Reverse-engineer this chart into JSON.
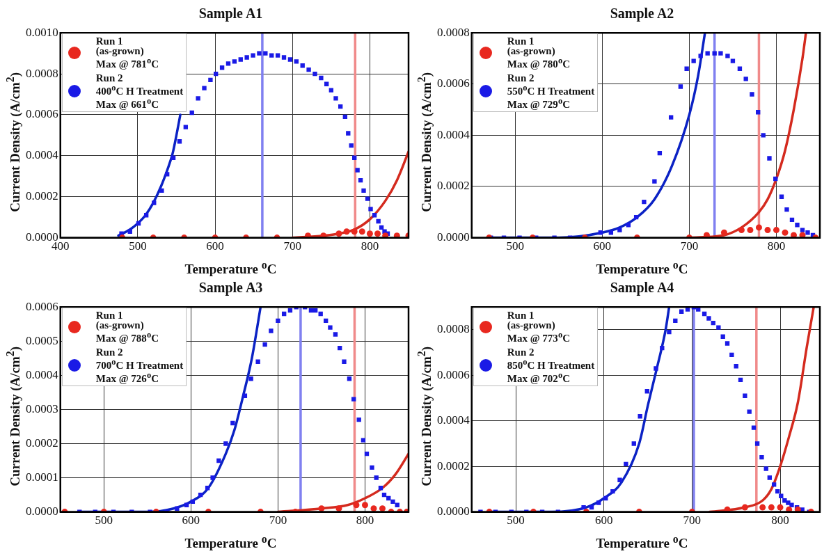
{
  "chart_data": [
    {
      "type": "scatter",
      "title": "Sample A1",
      "xlabel": "Temperature $^{o}$C",
      "ylabel": "Current Density (A/cm$^{2}$)",
      "xlim": [
        400,
        850
      ],
      "xticks": [
        400,
        500,
        600,
        700,
        800
      ],
      "ylim": [
        0,
        0.001
      ],
      "yticks": [
        {
          "value": 0,
          "label": "0.0000"
        },
        {
          "value": 0.0002,
          "label": "0.0002"
        },
        {
          "value": 0.0004,
          "label": "0.0004"
        },
        {
          "value": 0.0006,
          "label": "0.0006"
        },
        {
          "value": 0.0008,
          "label": "0.0008"
        },
        {
          "value": 0.001,
          "label": "0.0010"
        }
      ],
      "grid": true,
      "legend": "top left",
      "series": [
        {
          "name": "Run 1\n(as-grown)\nMax @ 781$^{o}$C",
          "marker": "circle",
          "color": "#e8281f",
          "x": [
            480,
            520,
            560,
            600,
            640,
            680,
            720,
            740,
            760,
            770,
            780,
            790,
            800,
            810,
            820,
            835,
            850
          ],
          "values": [
            0,
            0,
            0,
            0,
            0,
            0,
            1e-05,
            1e-05,
            2e-05,
            3e-05,
            3e-05,
            3e-05,
            2e-05,
            2e-05,
            1e-05,
            1e-05,
            1e-05
          ]
        },
        {
          "name": "Run 2\n400$^{o}$C H Treatment\nMax @ 661$^{o}$C",
          "marker": "square",
          "color": "#1a1ae6",
          "x": [
            479,
            490,
            501,
            511,
            521,
            531,
            538,
            546,
            554,
            562,
            570,
            578,
            586,
            594,
            601,
            609,
            617,
            625,
            633,
            641,
            649,
            657,
            665,
            673,
            681,
            689,
            697,
            705,
            713,
            721,
            729,
            737,
            744,
            750,
            756,
            762,
            768,
            772,
            776,
            780,
            784,
            788,
            792,
            797,
            801,
            806,
            811,
            815,
            819,
            823
          ],
          "values": [
            2e-05,
            3e-05,
            7e-05,
            0.00011,
            0.00017,
            0.00023,
            0.00031,
            0.00039,
            0.00047,
            0.00054,
            0.00061,
            0.00068,
            0.00073,
            0.00077,
            0.0008,
            0.00083,
            0.00085,
            0.00086,
            0.00087,
            0.00088,
            0.00089,
            0.0009,
            0.0009,
            0.00089,
            0.00089,
            0.00088,
            0.00087,
            0.00086,
            0.00084,
            0.00082,
            0.0008,
            0.00078,
            0.00075,
            0.00072,
            0.00068,
            0.00064,
            0.00059,
            0.00051,
            0.00045,
            0.00039,
            0.00033,
            0.00028,
            0.00023,
            0.00019,
            0.00014,
            0.00011,
            8e-05,
            5e-05,
            3e-05,
            2e-05
          ]
        },
        {
          "type": "line",
          "marker": "none",
          "color": "#0b22c4",
          "x": [
            475,
            490,
            500,
            510,
            520,
            530,
            540,
            545,
            550,
            555
          ],
          "values": [
            1e-05,
            4e-05,
            7e-05,
            0.00011,
            0.00017,
            0.00025,
            0.00035,
            0.00041,
            0.0005,
            0.0006
          ]
        },
        {
          "type": "line",
          "marker": "none",
          "color": "#d42a1e",
          "x": [
            700,
            740,
            760,
            780,
            800,
            820,
            835,
            850
          ],
          "values": [
            0,
            1e-05,
            2e-05,
            4e-05,
            9e-05,
            0.00018,
            0.00028,
            0.00042
          ]
        }
      ],
      "ref_lines": [
        {
          "axis": "x",
          "value": 661,
          "color": "#8080f0"
        },
        {
          "axis": "x",
          "value": 781,
          "color": "#f08a8a"
        }
      ]
    },
    {
      "type": "scatter",
      "title": "Sample A2",
      "xlabel": "Temperature $^{o}$C",
      "ylabel": "Current Density (A/cm$^{2}$)",
      "xlim": [
        450,
        850
      ],
      "xticks": [
        500,
        600,
        700,
        800
      ],
      "ylim": [
        0,
        0.0008
      ],
      "yticks": [
        {
          "value": 0,
          "label": "0.0000"
        },
        {
          "value": 0.0002,
          "label": "0.0002"
        },
        {
          "value": 0.0004,
          "label": "0.0004"
        },
        {
          "value": 0.0006,
          "label": "0.0006"
        },
        {
          "value": 0.0008,
          "label": "0.0008"
        }
      ],
      "grid": true,
      "legend": "top left",
      "series": [
        {
          "name": "Run 1\n(as-grown)\nMax @ 780$^{o}$C",
          "marker": "circle",
          "color": "#e8281f",
          "x": [
            470,
            520,
            580,
            640,
            700,
            720,
            740,
            760,
            770,
            780,
            790,
            800,
            810,
            820,
            830,
            845
          ],
          "values": [
            0,
            0,
            0,
            0,
            0,
            1e-05,
            2e-05,
            3e-05,
            3e-05,
            4e-05,
            3e-05,
            3e-05,
            2e-05,
            1e-05,
            1e-05,
            0
          ]
        },
        {
          "name": "Run 2\n550$^{o}$C H Treatment\nMax @ 729$^{o}$C",
          "marker": "square",
          "color": "#1a1ae6",
          "x": [
            472,
            487,
            505,
            524,
            545,
            563,
            598,
            610,
            620,
            630,
            639,
            648,
            660,
            666,
            679,
            690,
            697,
            705,
            713,
            721,
            729,
            736,
            744,
            750,
            758,
            765,
            772,
            779,
            785,
            792,
            799,
            806,
            812,
            818,
            824,
            830,
            836,
            842
          ],
          "values": [
            0,
            0,
            0,
            0,
            0,
            0,
            2e-05,
            2e-05,
            3e-05,
            5e-05,
            8e-05,
            0.00014,
            0.00022,
            0.00033,
            0.00047,
            0.00059,
            0.00066,
            0.00069,
            0.00071,
            0.00072,
            0.00072,
            0.00072,
            0.00071,
            0.00069,
            0.00066,
            0.00062,
            0.00056,
            0.00049,
            0.0004,
            0.00031,
            0.00023,
            0.00016,
            0.00011,
            7e-05,
            5e-05,
            3e-05,
            2e-05,
            1e-05
          ]
        },
        {
          "type": "line",
          "marker": "none",
          "color": "#0b22c4",
          "x": [
            470,
            550,
            600,
            620,
            640,
            660,
            680,
            700,
            710,
            718
          ],
          "values": [
            0,
            0,
            2e-05,
            4e-05,
            8e-05,
            0.00015,
            0.00028,
            0.00048,
            0.00063,
            0.0008
          ]
        },
        {
          "type": "line",
          "marker": "none",
          "color": "#d42a1e",
          "x": [
            700,
            740,
            760,
            780,
            790,
            800,
            810,
            820,
            830,
            834
          ],
          "values": [
            0,
            1e-05,
            4e-05,
            0.0001,
            0.00015,
            0.00023,
            0.00034,
            0.0005,
            0.0007,
            0.0008
          ]
        }
      ],
      "ref_lines": [
        {
          "axis": "x",
          "value": 729,
          "color": "#8080f0"
        },
        {
          "axis": "x",
          "value": 780,
          "color": "#f08a8a"
        }
      ]
    },
    {
      "type": "scatter",
      "title": "Sample A3",
      "xlabel": "Temperature $^{o}$C",
      "ylabel": "Current Density (A/cm$^{2}$)",
      "xlim": [
        450,
        850
      ],
      "xticks": [
        500,
        600,
        700,
        800
      ],
      "ylim": [
        0,
        0.0006
      ],
      "yticks": [
        {
          "value": 0,
          "label": "0.0000"
        },
        {
          "value": 0.0001,
          "label": "0.0001"
        },
        {
          "value": 0.0002,
          "label": "0.0002"
        },
        {
          "value": 0.0003,
          "label": "0.0003"
        },
        {
          "value": 0.0004,
          "label": "0.0004"
        },
        {
          "value": 0.0005,
          "label": "0.0005"
        },
        {
          "value": 0.0006,
          "label": "0.0006"
        }
      ],
      "grid": true,
      "legend": "top left",
      "series": [
        {
          "name": "Run 1\n(as-grown)\nMax @ 788$^{o}$C",
          "marker": "circle",
          "color": "#e8281f",
          "x": [
            455,
            500,
            560,
            620,
            680,
            720,
            750,
            770,
            790,
            800,
            810,
            820,
            830,
            840,
            848
          ],
          "values": [
            0,
            0,
            0,
            0,
            0,
            0,
            1e-05,
            1e-05,
            2e-05,
            2e-05,
            1e-05,
            1e-05,
            0,
            0,
            0
          ]
        },
        {
          "name": "Run 2\n700$^{o}$C H Treatment\nMax @ 726$^{o}$C",
          "marker": "square",
          "color": "#1a1ae6",
          "x": [
            472,
            490,
            511,
            532,
            553,
            572,
            584,
            595,
            602,
            611,
            619,
            625,
            632,
            640,
            648,
            662,
            669,
            677,
            685,
            692,
            700,
            707,
            714,
            721,
            731,
            738,
            743,
            749,
            755,
            760,
            766,
            771,
            776,
            782,
            787,
            793,
            798,
            802,
            808,
            813,
            818,
            822,
            827,
            832,
            837
          ],
          "values": [
            0,
            0,
            0,
            0,
            0,
            0,
            1e-05,
            2e-05,
            3e-05,
            5e-05,
            7e-05,
            0.0001,
            0.00015,
            0.0002,
            0.00026,
            0.00034,
            0.00039,
            0.00044,
            0.00049,
            0.00053,
            0.00056,
            0.00058,
            0.00059,
            0.0006,
            0.0006,
            0.00059,
            0.00059,
            0.00058,
            0.00056,
            0.00054,
            0.00052,
            0.00048,
            0.00044,
            0.00039,
            0.00033,
            0.00027,
            0.00021,
            0.00017,
            0.00013,
            0.0001,
            7e-05,
            5e-05,
            4e-05,
            3e-05,
            2e-05
          ]
        },
        {
          "type": "line",
          "marker": "none",
          "color": "#0b22c4",
          "x": [
            470,
            550,
            580,
            600,
            620,
            640,
            650,
            660,
            670,
            680
          ],
          "values": [
            0,
            0,
            1e-05,
            3e-05,
            7e-05,
            0.00017,
            0.00024,
            0.00034,
            0.00045,
            0.0006
          ]
        },
        {
          "type": "line",
          "marker": "none",
          "color": "#d42a1e",
          "x": [
            700,
            750,
            780,
            800,
            820,
            835,
            850
          ],
          "values": [
            0,
            1e-05,
            2e-05,
            4e-05,
            7e-05,
            0.00011,
            0.00017
          ]
        }
      ],
      "ref_lines": [
        {
          "axis": "x",
          "value": 726,
          "color": "#8080f0"
        },
        {
          "axis": "x",
          "value": 788,
          "color": "#f08a8a"
        }
      ]
    },
    {
      "type": "scatter",
      "title": "Sample A4",
      "xlabel": "Temperature $^{o}$C",
      "ylabel": "Current Density (A/cm$^{2}$)",
      "xlim": [
        450,
        845
      ],
      "xticks": [
        500,
        600,
        700,
        800
      ],
      "ylim": [
        0,
        0.0009
      ],
      "yticks": [
        {
          "value": 0,
          "label": "0.0000"
        },
        {
          "value": 0.0002,
          "label": "0.0002"
        },
        {
          "value": 0.0004,
          "label": "0.0004"
        },
        {
          "value": 0.0006,
          "label": "0.0006"
        },
        {
          "value": 0.0008,
          "label": "0.0008"
        }
      ],
      "grid": true,
      "legend": "top left",
      "series": [
        {
          "name": "Run 1\n(as-grown)\nMax @ 773$^{o}$C",
          "marker": "circle",
          "color": "#e8281f",
          "x": [
            470,
            520,
            580,
            640,
            700,
            740,
            760,
            780,
            790,
            800,
            810,
            820,
            835
          ],
          "values": [
            0,
            0,
            0,
            0,
            0,
            1e-05,
            2e-05,
            2e-05,
            2e-05,
            2e-05,
            1e-05,
            1e-05,
            0
          ]
        },
        {
          "name": "Run 2\n850$^{o}$C H Treatment\nMax @ 702$^{o}$C",
          "marker": "square",
          "color": "#1a1ae6",
          "x": [
            460,
            477,
            495,
            512,
            530,
            548,
            565,
            577,
            586,
            594,
            602,
            610,
            618,
            625,
            634,
            641,
            649,
            659,
            666,
            674,
            681,
            688,
            695,
            702,
            707,
            714,
            719,
            724,
            730,
            735,
            740,
            745,
            750,
            755,
            760,
            765,
            770,
            774,
            779,
            784,
            788,
            793,
            797,
            801,
            805,
            809,
            813,
            819,
            825,
            833
          ],
          "values": [
            0,
            0,
            0,
            0,
            0,
            0,
            0,
            2e-05,
            2e-05,
            4e-05,
            6e-05,
            9e-05,
            0.00014,
            0.00021,
            0.0003,
            0.00042,
            0.00053,
            0.00063,
            0.00072,
            0.00079,
            0.00084,
            0.00088,
            0.00089,
            0.0009,
            0.00089,
            0.00087,
            0.00085,
            0.00083,
            0.00081,
            0.00077,
            0.00074,
            0.00069,
            0.00064,
            0.00058,
            0.00051,
            0.00044,
            0.00037,
            0.0003,
            0.00024,
            0.00019,
            0.00015,
            0.00012,
            9e-05,
            7e-05,
            5e-05,
            4e-05,
            3e-05,
            2e-05,
            1e-05,
            0
          ]
        },
        {
          "type": "line",
          "marker": "none",
          "color": "#0b22c4",
          "x": [
            470,
            540,
            580,
            600,
            620,
            640,
            650,
            660,
            670,
            674
          ],
          "values": [
            0,
            0,
            2e-05,
            6e-05,
            0.00013,
            0.0003,
            0.00047,
            0.00063,
            0.0008,
            0.0009
          ]
        },
        {
          "type": "line",
          "marker": "none",
          "color": "#d42a1e",
          "x": [
            720,
            760,
            780,
            790,
            800,
            810,
            820,
            830,
            838
          ],
          "values": [
            0,
            2e-05,
            5e-05,
            0.0001,
            0.0002,
            0.00033,
            0.00048,
            0.00072,
            0.0009
          ]
        }
      ],
      "ref_lines": [
        {
          "axis": "x",
          "value": 702,
          "color": "#8080f0"
        },
        {
          "axis": "x",
          "value": 773,
          "color": "#f08a8a"
        }
      ]
    }
  ]
}
